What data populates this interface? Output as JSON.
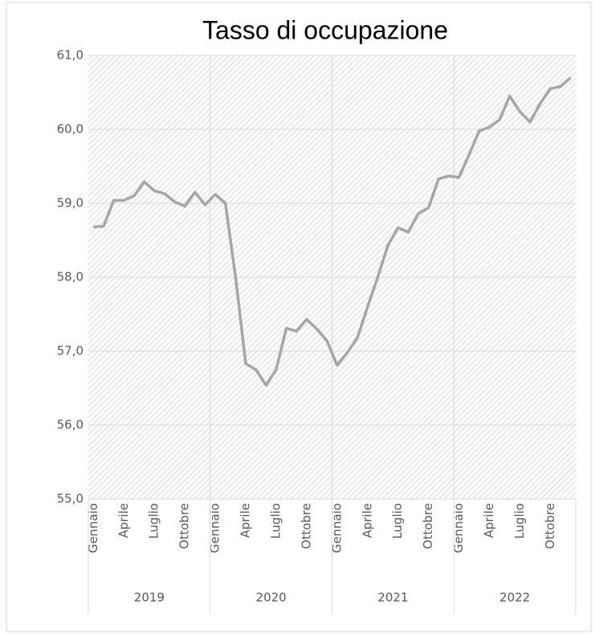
{
  "chart_data": {
    "type": "line",
    "title": "Tasso di occupazione",
    "categories": [
      "Gennaio",
      null,
      null,
      "Aprile",
      null,
      null,
      "Luglio",
      null,
      null,
      "Ottobre",
      null,
      null,
      "Gennaio",
      null,
      null,
      "Aprile",
      null,
      null,
      "Luglio",
      null,
      null,
      "Ottobre",
      null,
      null,
      "Gennaio",
      null,
      null,
      "Aprile",
      null,
      null,
      "Luglio",
      null,
      null,
      "Ottobre",
      null,
      null,
      "Gennaio",
      null,
      null,
      "Aprile",
      null,
      null,
      "Luglio",
      null,
      null,
      "Ottobre",
      null,
      null
    ],
    "years": [
      "2019",
      "2020",
      "2021",
      "2022"
    ],
    "series": [
      {
        "color": "#a6a6a6",
        "values": [
          58.68,
          58.69,
          59.04,
          59.04,
          59.1,
          59.29,
          59.17,
          59.13,
          59.02,
          58.96,
          59.15,
          58.98,
          59.12,
          59.0,
          58.0,
          56.83,
          56.75,
          56.54,
          56.75,
          57.31,
          57.27,
          57.43,
          57.3,
          57.14,
          56.81,
          56.98,
          57.18,
          57.6,
          58.0,
          58.43,
          58.67,
          58.61,
          58.86,
          58.94,
          59.33,
          59.37,
          59.35,
          59.66,
          59.98,
          60.03,
          60.13,
          60.45,
          60.24,
          60.1,
          60.35,
          60.55,
          60.58,
          60.7
        ]
      }
    ],
    "ylim": [
      55,
      61
    ],
    "yticks": [
      {
        "value": 55,
        "label": "55,0"
      },
      {
        "value": 56,
        "label": "56,0"
      },
      {
        "value": 57,
        "label": "57,0"
      },
      {
        "value": 58,
        "label": "58,0"
      },
      {
        "value": 59,
        "label": "59,0"
      },
      {
        "value": 60,
        "label": "60,0"
      },
      {
        "value": 61,
        "label": "61,0"
      }
    ],
    "grid": true
  }
}
